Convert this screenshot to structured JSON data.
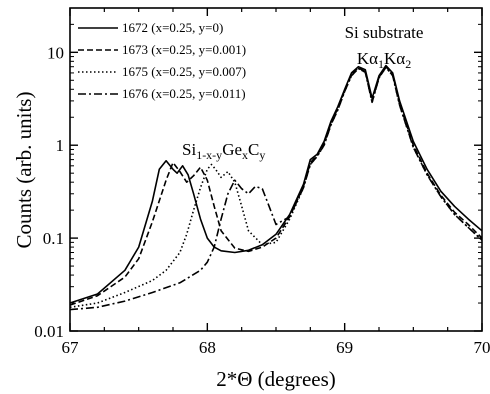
{
  "chart_data": {
    "type": "line",
    "xlabel": "2*Θ (degrees)",
    "ylabel": "Counts (arb. units)",
    "xlim": [
      67,
      70
    ],
    "ylim": [
      0.01,
      30
    ],
    "yscale": "log",
    "x_ticks": [
      "67",
      "68",
      "69",
      "70"
    ],
    "y_ticks": [
      {
        "value": 0.01,
        "label": "0.01"
      },
      {
        "value": 0.1,
        "label": "0.1"
      },
      {
        "value": 1,
        "label": "1"
      },
      {
        "value": 10,
        "label": "10"
      }
    ],
    "grid": false,
    "legend_position": "top-left",
    "annotations": {
      "substrate_line1": "Si substrate",
      "k_alpha": "Kα",
      "sub1": "1",
      "sub2": "2",
      "alloy_si": "Si",
      "alloy_sub1": "1-x-y",
      "alloy_ge": "Ge",
      "alloy_sub2": "x",
      "alloy_c": "C",
      "alloy_sub3": "y"
    },
    "series": [
      {
        "name": "1672 (x=0.25, y=0)",
        "dash": "solid",
        "points": [
          [
            67.0,
            0.02
          ],
          [
            67.2,
            0.025
          ],
          [
            67.4,
            0.045
          ],
          [
            67.5,
            0.08
          ],
          [
            67.6,
            0.25
          ],
          [
            67.65,
            0.55
          ],
          [
            67.7,
            0.68
          ],
          [
            67.75,
            0.55
          ],
          [
            67.78,
            0.5
          ],
          [
            67.82,
            0.6
          ],
          [
            67.86,
            0.48
          ],
          [
            67.9,
            0.3
          ],
          [
            67.95,
            0.16
          ],
          [
            68.0,
            0.1
          ],
          [
            68.05,
            0.08
          ],
          [
            68.1,
            0.073
          ],
          [
            68.2,
            0.07
          ],
          [
            68.3,
            0.074
          ],
          [
            68.4,
            0.085
          ],
          [
            68.5,
            0.11
          ],
          [
            68.6,
            0.18
          ],
          [
            68.7,
            0.38
          ],
          [
            68.75,
            0.7
          ],
          [
            68.8,
            0.8
          ],
          [
            68.85,
            1.1
          ],
          [
            68.9,
            1.8
          ],
          [
            68.95,
            2.6
          ],
          [
            69.0,
            4.0
          ],
          [
            69.05,
            6.0
          ],
          [
            69.1,
            7.0
          ],
          [
            69.15,
            6.5
          ],
          [
            69.2,
            3.2
          ],
          [
            69.25,
            5.6
          ],
          [
            69.3,
            7.2
          ],
          [
            69.35,
            6.0
          ],
          [
            69.4,
            3.0
          ],
          [
            69.5,
            1.1
          ],
          [
            69.6,
            0.55
          ],
          [
            69.7,
            0.32
          ],
          [
            69.8,
            0.22
          ],
          [
            69.9,
            0.16
          ],
          [
            70.0,
            0.12
          ]
        ]
      },
      {
        "name": "1673 (x=0.25, y=0.001)",
        "dash": "dashed",
        "points": [
          [
            67.0,
            0.019
          ],
          [
            67.2,
            0.024
          ],
          [
            67.4,
            0.038
          ],
          [
            67.5,
            0.06
          ],
          [
            67.6,
            0.15
          ],
          [
            67.7,
            0.42
          ],
          [
            67.75,
            0.65
          ],
          [
            67.8,
            0.52
          ],
          [
            67.85,
            0.4
          ],
          [
            67.9,
            0.47
          ],
          [
            67.95,
            0.58
          ],
          [
            68.0,
            0.42
          ],
          [
            68.05,
            0.22
          ],
          [
            68.1,
            0.12
          ],
          [
            68.2,
            0.078
          ],
          [
            68.3,
            0.072
          ],
          [
            68.4,
            0.08
          ],
          [
            68.5,
            0.1
          ],
          [
            68.6,
            0.17
          ],
          [
            68.7,
            0.36
          ],
          [
            68.75,
            0.65
          ],
          [
            68.8,
            0.78
          ],
          [
            68.85,
            1.05
          ],
          [
            68.9,
            1.7
          ],
          [
            68.95,
            2.5
          ],
          [
            69.0,
            3.9
          ],
          [
            69.05,
            5.8
          ],
          [
            69.1,
            6.8
          ],
          [
            69.15,
            6.2
          ],
          [
            69.2,
            3.0
          ],
          [
            69.25,
            5.4
          ],
          [
            69.3,
            7.0
          ],
          [
            69.35,
            5.8
          ],
          [
            69.4,
            2.8
          ],
          [
            69.5,
            1.0
          ],
          [
            69.6,
            0.5
          ],
          [
            69.7,
            0.29
          ],
          [
            69.8,
            0.19
          ],
          [
            69.9,
            0.14
          ],
          [
            70.0,
            0.1
          ]
        ]
      },
      {
        "name": "1675 (x=0.25, y=0.007)",
        "dash": "dotted",
        "points": [
          [
            67.0,
            0.018
          ],
          [
            67.2,
            0.02
          ],
          [
            67.4,
            0.026
          ],
          [
            67.6,
            0.035
          ],
          [
            67.7,
            0.045
          ],
          [
            67.8,
            0.07
          ],
          [
            67.85,
            0.11
          ],
          [
            67.9,
            0.2
          ],
          [
            67.95,
            0.35
          ],
          [
            68.0,
            0.55
          ],
          [
            68.03,
            0.62
          ],
          [
            68.06,
            0.55
          ],
          [
            68.1,
            0.45
          ],
          [
            68.15,
            0.52
          ],
          [
            68.2,
            0.4
          ],
          [
            68.25,
            0.22
          ],
          [
            68.3,
            0.12
          ],
          [
            68.4,
            0.085
          ],
          [
            68.5,
            0.09
          ],
          [
            68.6,
            0.16
          ],
          [
            68.7,
            0.35
          ],
          [
            68.75,
            0.62
          ],
          [
            68.8,
            0.76
          ],
          [
            68.85,
            1.0
          ],
          [
            68.9,
            1.65
          ],
          [
            68.95,
            2.4
          ],
          [
            69.0,
            3.8
          ],
          [
            69.05,
            5.6
          ],
          [
            69.1,
            6.7
          ],
          [
            69.15,
            6.1
          ],
          [
            69.2,
            2.9
          ],
          [
            69.25,
            5.3
          ],
          [
            69.3,
            6.9
          ],
          [
            69.35,
            5.6
          ],
          [
            69.4,
            2.7
          ],
          [
            69.5,
            0.95
          ],
          [
            69.6,
            0.48
          ],
          [
            69.7,
            0.28
          ],
          [
            69.8,
            0.18
          ],
          [
            69.9,
            0.13
          ],
          [
            70.0,
            0.095
          ]
        ]
      },
      {
        "name": "1676 (x=0.25, y=0.011)",
        "dash": "dashdot",
        "points": [
          [
            67.0,
            0.017
          ],
          [
            67.2,
            0.018
          ],
          [
            67.4,
            0.021
          ],
          [
            67.6,
            0.026
          ],
          [
            67.8,
            0.033
          ],
          [
            67.95,
            0.045
          ],
          [
            68.0,
            0.055
          ],
          [
            68.05,
            0.08
          ],
          [
            68.1,
            0.16
          ],
          [
            68.15,
            0.3
          ],
          [
            68.2,
            0.42
          ],
          [
            68.25,
            0.34
          ],
          [
            68.3,
            0.3
          ],
          [
            68.35,
            0.36
          ],
          [
            68.4,
            0.34
          ],
          [
            68.45,
            0.22
          ],
          [
            68.5,
            0.14
          ],
          [
            68.6,
            0.17
          ],
          [
            68.7,
            0.35
          ],
          [
            68.75,
            0.62
          ],
          [
            68.8,
            0.76
          ],
          [
            68.85,
            1.0
          ],
          [
            68.9,
            1.65
          ],
          [
            68.95,
            2.4
          ],
          [
            69.0,
            3.8
          ],
          [
            69.05,
            5.6
          ],
          [
            69.1,
            6.7
          ],
          [
            69.15,
            6.1
          ],
          [
            69.2,
            2.9
          ],
          [
            69.25,
            5.3
          ],
          [
            69.3,
            6.9
          ],
          [
            69.35,
            5.6
          ],
          [
            69.4,
            2.7
          ],
          [
            69.5,
            0.95
          ],
          [
            69.6,
            0.48
          ],
          [
            69.7,
            0.28
          ],
          [
            69.8,
            0.18
          ],
          [
            69.9,
            0.13
          ],
          [
            70.0,
            0.095
          ]
        ]
      }
    ]
  }
}
